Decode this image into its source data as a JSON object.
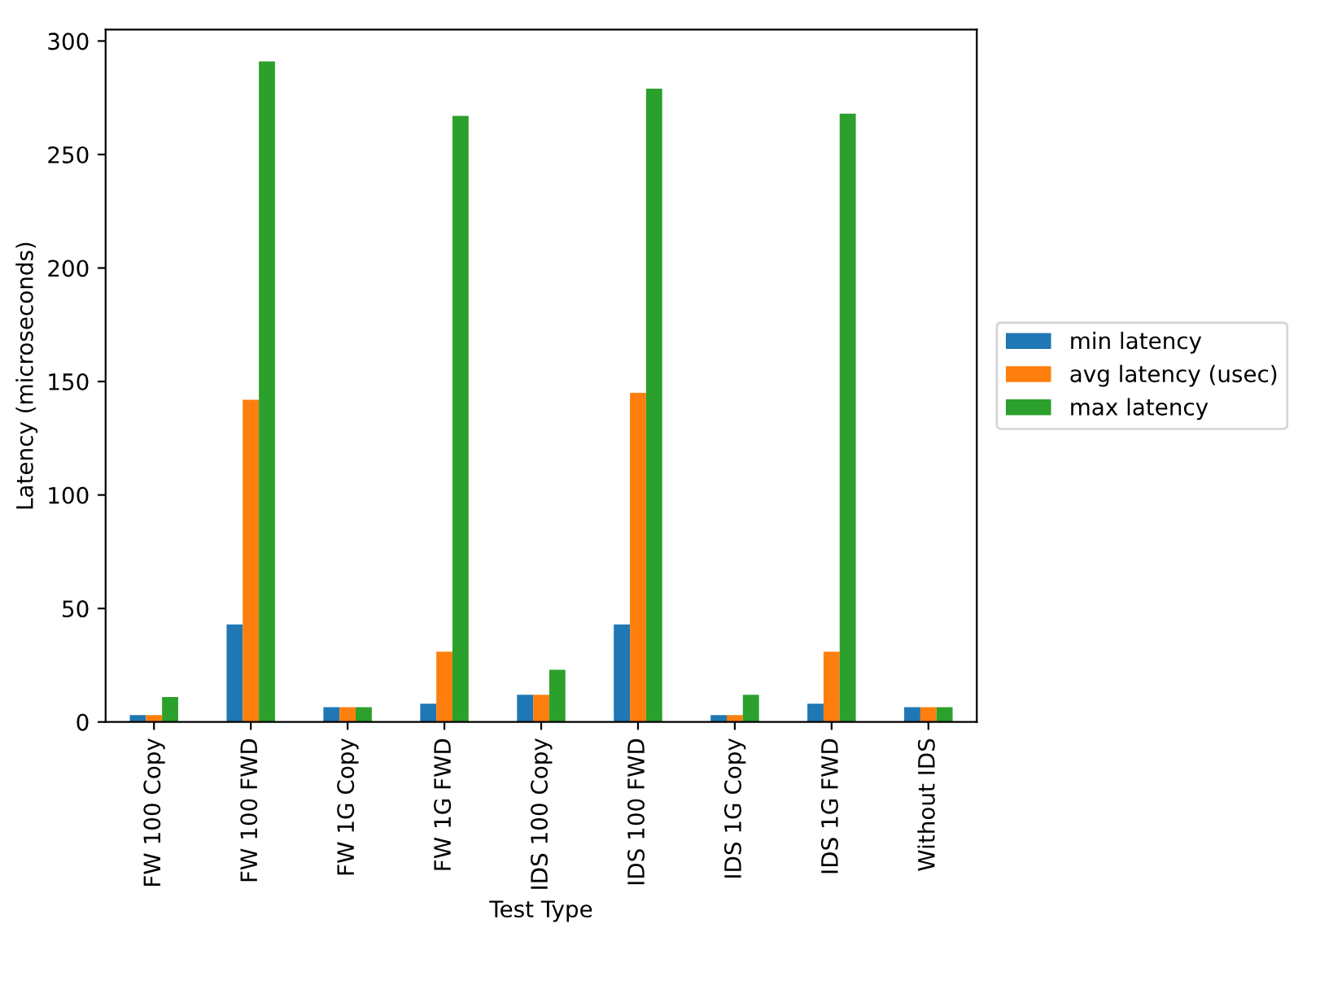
{
  "chart_data": {
    "type": "bar",
    "xlabel": "Test Type",
    "ylabel": "Latency (microseconds)",
    "categories": [
      "FW 100 Copy",
      "FW 100 FWD",
      "FW 1G Copy",
      "FW 1G FWD",
      "IDS 100 Copy",
      "IDS 100 FWD",
      "IDS 1G Copy",
      "IDS 1G FWD",
      "Without IDS"
    ],
    "series": [
      {
        "name": "min latency",
        "color": "#1f77b4",
        "values": [
          3,
          43,
          6.5,
          8,
          12,
          43,
          3,
          8,
          6.5
        ]
      },
      {
        "name": "avg latency (usec)",
        "color": "#ff7f0e",
        "values": [
          3,
          142,
          6.5,
          31,
          12,
          145,
          3,
          31,
          6.5
        ]
      },
      {
        "name": "max latency",
        "color": "#2ca02c",
        "values": [
          11,
          291,
          6.5,
          267,
          23,
          279,
          12,
          268,
          6.5
        ]
      }
    ],
    "ylim": [
      0,
      305
    ],
    "yticks": [
      0,
      50,
      100,
      150,
      200,
      250,
      300
    ],
    "grid": false,
    "legend": "right"
  }
}
